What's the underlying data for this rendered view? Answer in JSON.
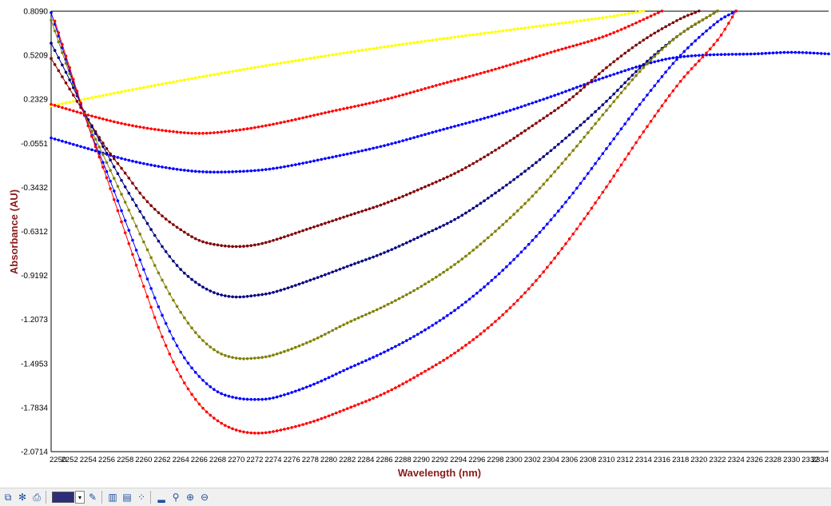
{
  "chart_data": {
    "type": "line",
    "xlabel": "Wavelength (nm)",
    "ylabel": "Absorbance (AU)",
    "xlim": [
      2250,
      2334
    ],
    "ylim": [
      -2.0714,
      0.809
    ],
    "y_ticks": [
      "0.8090",
      "0.5209",
      "0.2329",
      "-0.0551",
      "-0.3432",
      "-0.6312",
      "-0.9192",
      "-1.2073",
      "-1.4953",
      "-1.7834",
      "-2.0714"
    ],
    "x_ticks": [
      "2250",
      "2252",
      "2254",
      "2256",
      "2258",
      "2260",
      "2262",
      "2264",
      "2266",
      "2268",
      "2270",
      "2272",
      "2274",
      "2276",
      "2278",
      "2280",
      "2282",
      "2284",
      "2286",
      "2288",
      "2290",
      "2292",
      "2294",
      "2296",
      "2298",
      "2300",
      "2302",
      "2304",
      "2306",
      "2308",
      "2310",
      "2312",
      "2314",
      "2316",
      "2318",
      "2320",
      "2322",
      "2324",
      "2326",
      "2328",
      "2330",
      "2332",
      "2334"
    ],
    "grid": false,
    "series": [
      {
        "color": "#ffff00",
        "points": [
          [
            2250,
            0.19
          ],
          [
            2260,
            0.31
          ],
          [
            2270,
            0.42
          ],
          [
            2280,
            0.52
          ],
          [
            2290,
            0.61
          ],
          [
            2300,
            0.69
          ],
          [
            2310,
            0.77
          ],
          [
            2314,
            0.81
          ]
        ]
      },
      {
        "color": "#ff0000",
        "points": [
          [
            2250,
            0.2
          ],
          [
            2254,
            0.13
          ],
          [
            2258,
            0.07
          ],
          [
            2262,
            0.03
          ],
          [
            2266,
            0.01
          ],
          [
            2270,
            0.03
          ],
          [
            2274,
            0.07
          ],
          [
            2280,
            0.15
          ],
          [
            2286,
            0.23
          ],
          [
            2292,
            0.33
          ],
          [
            2298,
            0.43
          ],
          [
            2304,
            0.54
          ],
          [
            2310,
            0.65
          ],
          [
            2316,
            0.81
          ]
        ]
      },
      {
        "color": "#0000ff",
        "points": [
          [
            2250,
            -0.02
          ],
          [
            2254,
            -0.09
          ],
          [
            2258,
            -0.16
          ],
          [
            2262,
            -0.21
          ],
          [
            2266,
            -0.24
          ],
          [
            2270,
            -0.24
          ],
          [
            2274,
            -0.22
          ],
          [
            2280,
            -0.15
          ],
          [
            2286,
            -0.07
          ],
          [
            2292,
            0.03
          ],
          [
            2298,
            0.13
          ],
          [
            2304,
            0.25
          ],
          [
            2310,
            0.38
          ],
          [
            2316,
            0.49
          ],
          [
            2320,
            0.52
          ],
          [
            2326,
            0.53
          ],
          [
            2330,
            0.54
          ],
          [
            2334,
            0.53
          ]
        ]
      },
      {
        "color": "#800000",
        "points": [
          [
            2250,
            0.5
          ],
          [
            2252,
            0.3
          ],
          [
            2254,
            0.1
          ],
          [
            2256,
            -0.09
          ],
          [
            2258,
            -0.25
          ],
          [
            2260,
            -0.41
          ],
          [
            2262,
            -0.53
          ],
          [
            2264,
            -0.62
          ],
          [
            2266,
            -0.69
          ],
          [
            2268,
            -0.72
          ],
          [
            2270,
            -0.73
          ],
          [
            2272,
            -0.72
          ],
          [
            2274,
            -0.69
          ],
          [
            2278,
            -0.61
          ],
          [
            2282,
            -0.53
          ],
          [
            2286,
            -0.45
          ],
          [
            2290,
            -0.35
          ],
          [
            2294,
            -0.24
          ],
          [
            2298,
            -0.1
          ],
          [
            2302,
            0.06
          ],
          [
            2306,
            0.23
          ],
          [
            2310,
            0.44
          ],
          [
            2314,
            0.62
          ],
          [
            2318,
            0.76
          ],
          [
            2320,
            0.81
          ]
        ]
      },
      {
        "color": "#000080",
        "points": [
          [
            2250,
            0.6
          ],
          [
            2252,
            0.36
          ],
          [
            2254,
            0.1
          ],
          [
            2256,
            -0.12
          ],
          [
            2258,
            -0.34
          ],
          [
            2260,
            -0.54
          ],
          [
            2262,
            -0.73
          ],
          [
            2264,
            -0.88
          ],
          [
            2266,
            -0.98
          ],
          [
            2268,
            -1.04
          ],
          [
            2270,
            -1.06
          ],
          [
            2272,
            -1.05
          ],
          [
            2274,
            -1.03
          ],
          [
            2278,
            -0.95
          ],
          [
            2282,
            -0.86
          ],
          [
            2286,
            -0.77
          ],
          [
            2290,
            -0.66
          ],
          [
            2294,
            -0.54
          ],
          [
            2298,
            -0.38
          ],
          [
            2302,
            -0.2
          ],
          [
            2306,
            0.0
          ],
          [
            2310,
            0.22
          ],
          [
            2314,
            0.46
          ],
          [
            2318,
            0.66
          ],
          [
            2322,
            0.81
          ]
        ]
      },
      {
        "color": "#808000",
        "points": [
          [
            2250,
            0.75
          ],
          [
            2252,
            0.4
          ],
          [
            2254,
            0.08
          ],
          [
            2256,
            -0.18
          ],
          [
            2258,
            -0.44
          ],
          [
            2260,
            -0.7
          ],
          [
            2262,
            -0.95
          ],
          [
            2264,
            -1.16
          ],
          [
            2266,
            -1.32
          ],
          [
            2268,
            -1.42
          ],
          [
            2270,
            -1.46
          ],
          [
            2272,
            -1.46
          ],
          [
            2274,
            -1.44
          ],
          [
            2278,
            -1.35
          ],
          [
            2282,
            -1.23
          ],
          [
            2286,
            -1.12
          ],
          [
            2290,
            -0.99
          ],
          [
            2294,
            -0.83
          ],
          [
            2298,
            -0.63
          ],
          [
            2302,
            -0.4
          ],
          [
            2306,
            -0.13
          ],
          [
            2310,
            0.16
          ],
          [
            2314,
            0.44
          ],
          [
            2318,
            0.66
          ],
          [
            2322,
            0.81
          ]
        ]
      },
      {
        "color": "#0000ff",
        "points": [
          [
            2250,
            0.8
          ],
          [
            2252,
            0.42
          ],
          [
            2254,
            0.06
          ],
          [
            2256,
            -0.24
          ],
          [
            2258,
            -0.56
          ],
          [
            2260,
            -0.88
          ],
          [
            2262,
            -1.18
          ],
          [
            2264,
            -1.42
          ],
          [
            2266,
            -1.58
          ],
          [
            2268,
            -1.68
          ],
          [
            2270,
            -1.72
          ],
          [
            2272,
            -1.73
          ],
          [
            2274,
            -1.72
          ],
          [
            2278,
            -1.64
          ],
          [
            2282,
            -1.53
          ],
          [
            2286,
            -1.42
          ],
          [
            2290,
            -1.29
          ],
          [
            2294,
            -1.13
          ],
          [
            2298,
            -0.93
          ],
          [
            2302,
            -0.69
          ],
          [
            2306,
            -0.41
          ],
          [
            2310,
            -0.09
          ],
          [
            2314,
            0.23
          ],
          [
            2318,
            0.52
          ],
          [
            2322,
            0.74
          ],
          [
            2324,
            0.81
          ]
        ]
      },
      {
        "color": "#ff0000",
        "points": [
          [
            2250,
            0.82
          ],
          [
            2252,
            0.44
          ],
          [
            2254,
            0.06
          ],
          [
            2256,
            -0.28
          ],
          [
            2258,
            -0.64
          ],
          [
            2260,
            -0.99
          ],
          [
            2262,
            -1.32
          ],
          [
            2264,
            -1.58
          ],
          [
            2266,
            -1.76
          ],
          [
            2268,
            -1.87
          ],
          [
            2270,
            -1.93
          ],
          [
            2272,
            -1.95
          ],
          [
            2274,
            -1.94
          ],
          [
            2278,
            -1.88
          ],
          [
            2282,
            -1.79
          ],
          [
            2286,
            -1.69
          ],
          [
            2290,
            -1.56
          ],
          [
            2294,
            -1.41
          ],
          [
            2298,
            -1.22
          ],
          [
            2302,
            -0.98
          ],
          [
            2306,
            -0.68
          ],
          [
            2310,
            -0.34
          ],
          [
            2314,
            0.02
          ],
          [
            2318,
            0.35
          ],
          [
            2322,
            0.62
          ],
          [
            2324,
            0.81
          ]
        ]
      }
    ]
  },
  "toolbar": {
    "buttons": [
      "copy-icon",
      "snowflake-icon",
      "print-icon",
      "color-swatch",
      "dropdown-icon",
      "brush-icon",
      "vertical-grid-icon",
      "horizontal-grid-icon",
      "scatter-icon",
      "bar-chart-icon",
      "zoom-icon",
      "zoom-in-icon",
      "zoom-out-icon"
    ],
    "swatch_color": "#2e2e7a"
  }
}
